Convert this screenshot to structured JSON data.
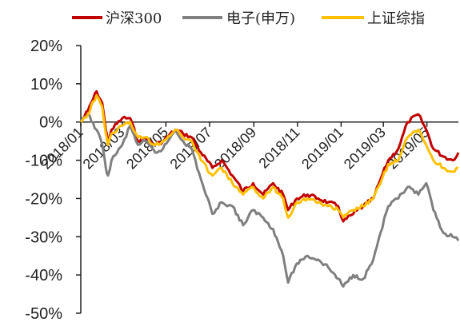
{
  "chart_data": {
    "type": "line",
    "title": "",
    "xlabel": "",
    "ylabel": "",
    "ylim": [
      -0.5,
      0.2
    ],
    "yticks": [
      0.2,
      0.1,
      0.0,
      -0.1,
      -0.2,
      -0.3,
      -0.4,
      -0.5
    ],
    "ytick_labels": [
      "20%",
      "10%",
      "0%",
      "-10%",
      "-20%",
      "-30%",
      "-40%",
      "-50%"
    ],
    "xticks": [
      "2018/01",
      "2018/03",
      "2018/05",
      "2018/07",
      "2018/09",
      "2018/11",
      "2019/01",
      "2019/03",
      "2019/05"
    ],
    "legend_position": "top",
    "grid": false,
    "series": [
      {
        "name": "沪深300",
        "color": "#C00000",
        "points": [
          [
            "2018-01-02",
            0.0
          ],
          [
            "2018-01-12",
            0.03
          ],
          [
            "2018-01-24",
            0.08
          ],
          [
            "2018-02-01",
            0.05
          ],
          [
            "2018-02-06",
            -0.02
          ],
          [
            "2018-02-09",
            -0.05
          ],
          [
            "2018-02-14",
            -0.02
          ],
          [
            "2018-03-01",
            0.01
          ],
          [
            "2018-03-12",
            0.01
          ],
          [
            "2018-03-23",
            -0.05
          ],
          [
            "2018-04-02",
            -0.04
          ],
          [
            "2018-04-16",
            -0.06
          ],
          [
            "2018-04-27",
            -0.05
          ],
          [
            "2018-05-14",
            -0.02
          ],
          [
            "2018-05-25",
            -0.03
          ],
          [
            "2018-06-06",
            -0.04
          ],
          [
            "2018-06-19",
            -0.08
          ],
          [
            "2018-07-05",
            -0.12
          ],
          [
            "2018-07-18",
            -0.1
          ],
          [
            "2018-08-02",
            -0.14
          ],
          [
            "2018-08-17",
            -0.18
          ],
          [
            "2018-08-31",
            -0.16
          ],
          [
            "2018-09-14",
            -0.19
          ],
          [
            "2018-09-28",
            -0.16
          ],
          [
            "2018-10-12",
            -0.19
          ],
          [
            "2018-10-19",
            -0.23
          ],
          [
            "2018-10-31",
            -0.2
          ],
          [
            "2018-11-15",
            -0.19
          ],
          [
            "2018-11-30",
            -0.2
          ],
          [
            "2018-12-14",
            -0.21
          ],
          [
            "2018-12-28",
            -0.22
          ],
          [
            "2019-01-04",
            -0.26
          ],
          [
            "2019-01-18",
            -0.24
          ],
          [
            "2019-02-01",
            -0.22
          ],
          [
            "2019-02-15",
            -0.2
          ],
          [
            "2019-02-25",
            -0.15
          ],
          [
            "2019-03-08",
            -0.1
          ],
          [
            "2019-03-22",
            -0.07
          ],
          [
            "2019-04-04",
            0.0
          ],
          [
            "2019-04-19",
            0.02
          ],
          [
            "2019-04-30",
            -0.02
          ],
          [
            "2019-05-10",
            -0.07
          ],
          [
            "2019-05-24",
            -0.09
          ],
          [
            "2019-06-06",
            -0.1
          ],
          [
            "2019-06-14",
            -0.08
          ]
        ]
      },
      {
        "name": "电子(申万)",
        "color": "#7F7F7F",
        "points": [
          [
            "2018-01-02",
            0.0
          ],
          [
            "2018-01-12",
            0.02
          ],
          [
            "2018-01-24",
            -0.02
          ],
          [
            "2018-02-01",
            -0.06
          ],
          [
            "2018-02-06",
            -0.12
          ],
          [
            "2018-02-09",
            -0.14
          ],
          [
            "2018-02-14",
            -0.1
          ],
          [
            "2018-03-01",
            -0.06
          ],
          [
            "2018-03-12",
            -0.01
          ],
          [
            "2018-03-23",
            -0.06
          ],
          [
            "2018-04-02",
            -0.05
          ],
          [
            "2018-04-16",
            -0.08
          ],
          [
            "2018-04-27",
            -0.07
          ],
          [
            "2018-05-14",
            -0.02
          ],
          [
            "2018-05-25",
            -0.05
          ],
          [
            "2018-06-06",
            -0.07
          ],
          [
            "2018-06-19",
            -0.15
          ],
          [
            "2018-07-05",
            -0.24
          ],
          [
            "2018-07-18",
            -0.21
          ],
          [
            "2018-08-02",
            -0.22
          ],
          [
            "2018-08-17",
            -0.27
          ],
          [
            "2018-08-31",
            -0.23
          ],
          [
            "2018-09-14",
            -0.25
          ],
          [
            "2018-09-28",
            -0.28
          ],
          [
            "2018-10-12",
            -0.35
          ],
          [
            "2018-10-19",
            -0.42
          ],
          [
            "2018-10-31",
            -0.37
          ],
          [
            "2018-11-15",
            -0.35
          ],
          [
            "2018-11-30",
            -0.36
          ],
          [
            "2018-12-14",
            -0.38
          ],
          [
            "2018-12-28",
            -0.41
          ],
          [
            "2019-01-04",
            -0.43
          ],
          [
            "2019-01-18",
            -0.4
          ],
          [
            "2019-02-01",
            -0.41
          ],
          [
            "2019-02-15",
            -0.36
          ],
          [
            "2019-02-25",
            -0.29
          ],
          [
            "2019-03-08",
            -0.22
          ],
          [
            "2019-03-22",
            -0.2
          ],
          [
            "2019-04-04",
            -0.17
          ],
          [
            "2019-04-19",
            -0.19
          ],
          [
            "2019-04-30",
            -0.16
          ],
          [
            "2019-05-10",
            -0.23
          ],
          [
            "2019-05-24",
            -0.29
          ],
          [
            "2019-06-06",
            -0.3
          ],
          [
            "2019-06-14",
            -0.31
          ]
        ]
      },
      {
        "name": "上证综指",
        "color": "#FFC000",
        "points": [
          [
            "2018-01-02",
            0.0
          ],
          [
            "2018-01-12",
            0.02
          ],
          [
            "2018-01-24",
            0.07
          ],
          [
            "2018-02-01",
            0.04
          ],
          [
            "2018-02-06",
            -0.03
          ],
          [
            "2018-02-09",
            -0.06
          ],
          [
            "2018-02-14",
            -0.03
          ],
          [
            "2018-03-01",
            -0.01
          ],
          [
            "2018-03-12",
            0.0
          ],
          [
            "2018-03-23",
            -0.04
          ],
          [
            "2018-04-02",
            -0.04
          ],
          [
            "2018-04-16",
            -0.06
          ],
          [
            "2018-04-27",
            -0.05
          ],
          [
            "2018-05-14",
            -0.02
          ],
          [
            "2018-05-25",
            -0.04
          ],
          [
            "2018-06-06",
            -0.05
          ],
          [
            "2018-06-19",
            -0.1
          ],
          [
            "2018-07-05",
            -0.14
          ],
          [
            "2018-07-18",
            -0.12
          ],
          [
            "2018-08-02",
            -0.16
          ],
          [
            "2018-08-17",
            -0.19
          ],
          [
            "2018-08-31",
            -0.17
          ],
          [
            "2018-09-14",
            -0.2
          ],
          [
            "2018-09-28",
            -0.17
          ],
          [
            "2018-10-12",
            -0.2
          ],
          [
            "2018-10-19",
            -0.25
          ],
          [
            "2018-10-31",
            -0.21
          ],
          [
            "2018-11-15",
            -0.2
          ],
          [
            "2018-11-30",
            -0.21
          ],
          [
            "2018-12-14",
            -0.22
          ],
          [
            "2018-12-28",
            -0.23
          ],
          [
            "2019-01-04",
            -0.25
          ],
          [
            "2019-01-18",
            -0.23
          ],
          [
            "2019-02-01",
            -0.22
          ],
          [
            "2019-02-15",
            -0.2
          ],
          [
            "2019-02-25",
            -0.16
          ],
          [
            "2019-03-08",
            -0.11
          ],
          [
            "2019-03-22",
            -0.1
          ],
          [
            "2019-04-04",
            -0.04
          ],
          [
            "2019-04-19",
            -0.02
          ],
          [
            "2019-04-30",
            -0.06
          ],
          [
            "2019-05-10",
            -0.1
          ],
          [
            "2019-05-24",
            -0.12
          ],
          [
            "2019-06-06",
            -0.13
          ],
          [
            "2019-06-14",
            -0.12
          ]
        ]
      }
    ]
  }
}
